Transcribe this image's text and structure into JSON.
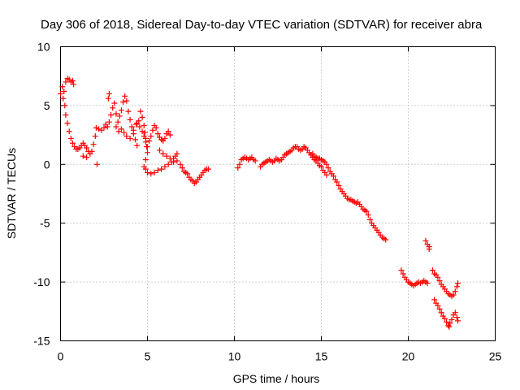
{
  "chart_data": {
    "type": "scatter",
    "title": "Day 306 of 2018, Sidereal Day-to-day VTEC variation (SDTVAR) for receiver abra",
    "xlabel": "GPS time / hours",
    "ylabel": "SDTVAR / TECUs",
    "xlim": [
      0,
      25
    ],
    "ylim": [
      -15,
      10
    ],
    "xticks": [
      0,
      5,
      10,
      15,
      20,
      25
    ],
    "yticks": [
      10,
      5,
      0,
      -5,
      -10,
      -15
    ],
    "xtick_labels": [
      "0",
      "5",
      "10",
      "15",
      "20",
      "25"
    ],
    "ytick_labels": [
      "10",
      "5",
      "0",
      "-5",
      "-10",
      "-15"
    ],
    "grid": true,
    "marker": "plus",
    "color": "#ff0000",
    "series": [
      {
        "name": "SDTVAR",
        "points": [
          [
            0.0,
            6.0
          ],
          [
            0.1,
            6.6
          ],
          [
            0.2,
            6.2
          ],
          [
            0.3,
            7.0
          ],
          [
            0.4,
            7.3
          ],
          [
            0.5,
            7.2
          ],
          [
            0.6,
            7.0
          ],
          [
            0.7,
            7.1
          ],
          [
            0.75,
            6.8
          ],
          [
            0.15,
            5.6
          ],
          [
            0.25,
            5.0
          ],
          [
            0.3,
            4.2
          ],
          [
            0.4,
            3.5
          ],
          [
            0.5,
            2.8
          ],
          [
            0.6,
            2.2
          ],
          [
            0.7,
            1.8
          ],
          [
            0.8,
            1.5
          ],
          [
            0.9,
            1.3
          ],
          [
            1.0,
            1.3
          ],
          [
            1.1,
            1.4
          ],
          [
            1.2,
            1.6
          ],
          [
            1.3,
            1.8
          ],
          [
            1.4,
            1.6
          ],
          [
            1.5,
            1.4
          ],
          [
            1.6,
            1.1
          ],
          [
            1.7,
            0.9
          ],
          [
            1.8,
            1.1
          ],
          [
            1.9,
            1.7
          ],
          [
            2.0,
            2.4
          ],
          [
            2.05,
            3.1
          ],
          [
            1.3,
            0.7
          ],
          [
            1.5,
            0.6
          ],
          [
            2.1,
            0.0
          ],
          [
            2.2,
            3.0
          ],
          [
            2.35,
            2.9
          ],
          [
            2.5,
            3.1
          ],
          [
            2.6,
            3.4
          ],
          [
            2.7,
            3.2
          ],
          [
            2.8,
            3.6
          ],
          [
            2.9,
            4.2
          ],
          [
            2.75,
            5.6
          ],
          [
            2.8,
            6.0
          ],
          [
            3.0,
            4.8
          ],
          [
            3.1,
            5.2
          ],
          [
            3.2,
            4.3
          ],
          [
            3.3,
            3.6
          ],
          [
            3.4,
            4.1
          ],
          [
            3.5,
            4.6
          ],
          [
            3.6,
            5.3
          ],
          [
            3.7,
            5.8
          ],
          [
            3.8,
            5.4
          ],
          [
            3.9,
            4.5
          ],
          [
            4.0,
            3.8
          ],
          [
            4.1,
            3.2
          ],
          [
            4.2,
            2.6
          ],
          [
            4.3,
            2.1
          ],
          [
            4.4,
            1.6
          ],
          [
            3.2,
            3.2
          ],
          [
            3.35,
            2.8
          ],
          [
            3.5,
            3.0
          ],
          [
            3.65,
            2.7
          ],
          [
            3.8,
            2.4
          ],
          [
            4.0,
            2.2
          ],
          [
            4.2,
            2.9
          ],
          [
            4.35,
            3.4
          ],
          [
            4.5,
            3.7
          ],
          [
            4.6,
            4.5
          ],
          [
            4.7,
            4.0
          ],
          [
            4.8,
            3.3
          ],
          [
            4.85,
            2.7
          ],
          [
            4.9,
            2.2
          ],
          [
            4.95,
            1.5
          ],
          [
            5.0,
            1.0
          ],
          [
            4.9,
            0.4
          ],
          [
            4.8,
            -0.2
          ],
          [
            4.9,
            -0.4
          ],
          [
            5.0,
            -0.7
          ],
          [
            5.2,
            -0.8
          ],
          [
            5.4,
            -0.7
          ],
          [
            5.6,
            -0.5
          ],
          [
            5.8,
            -0.4
          ],
          [
            6.0,
            -0.2
          ],
          [
            6.2,
            0.0
          ],
          [
            6.4,
            0.2
          ],
          [
            6.5,
            0.5
          ],
          [
            6.6,
            0.7
          ],
          [
            6.7,
            0.9
          ],
          [
            4.4,
            3.5
          ],
          [
            4.55,
            3.2
          ],
          [
            4.7,
            2.8
          ],
          [
            4.8,
            2.4
          ],
          [
            4.9,
            1.9
          ],
          [
            5.0,
            1.5
          ],
          [
            5.1,
            2.0
          ],
          [
            5.2,
            2.4
          ],
          [
            5.3,
            2.9
          ],
          [
            5.4,
            3.3
          ],
          [
            5.5,
            3.1
          ],
          [
            5.6,
            2.6
          ],
          [
            5.7,
            2.3
          ],
          [
            5.8,
            2.1
          ],
          [
            5.9,
            2.0
          ],
          [
            6.0,
            2.2
          ],
          [
            6.1,
            2.6
          ],
          [
            6.2,
            2.8
          ],
          [
            6.3,
            2.5
          ],
          [
            5.7,
            1.2
          ],
          [
            5.9,
            0.9
          ],
          [
            6.1,
            0.7
          ],
          [
            6.3,
            0.5
          ],
          [
            6.5,
            0.2
          ],
          [
            6.7,
            0.3
          ],
          [
            6.9,
            0.0
          ],
          [
            7.0,
            -0.3
          ],
          [
            7.1,
            -0.6
          ],
          [
            7.2,
            -0.7
          ],
          [
            7.3,
            -0.8
          ],
          [
            7.4,
            -1.1
          ],
          [
            7.5,
            -1.3
          ],
          [
            7.6,
            -1.4
          ],
          [
            7.7,
            -1.6
          ],
          [
            7.8,
            -1.5
          ],
          [
            7.9,
            -1.3
          ],
          [
            8.0,
            -1.1
          ],
          [
            8.1,
            -0.9
          ],
          [
            8.2,
            -0.7
          ],
          [
            8.3,
            -0.5
          ],
          [
            8.4,
            -0.4
          ],
          [
            8.5,
            -0.4
          ],
          [
            10.2,
            -0.3
          ],
          [
            10.3,
            0.0
          ],
          [
            10.4,
            0.4
          ],
          [
            10.5,
            0.5
          ],
          [
            10.6,
            0.6
          ],
          [
            10.7,
            0.5
          ],
          [
            10.8,
            0.4
          ],
          [
            10.9,
            0.5
          ],
          [
            11.0,
            0.6
          ],
          [
            11.1,
            0.4
          ],
          [
            11.2,
            0.3
          ],
          [
            11.5,
            -0.2
          ],
          [
            11.6,
            0.0
          ],
          [
            11.7,
            0.1
          ],
          [
            11.8,
            0.2
          ],
          [
            11.9,
            0.3
          ],
          [
            12.0,
            0.4
          ],
          [
            12.1,
            0.3
          ],
          [
            12.2,
            0.2
          ],
          [
            12.3,
            0.3
          ],
          [
            12.4,
            0.5
          ],
          [
            12.5,
            0.4
          ],
          [
            12.6,
            0.3
          ],
          [
            12.7,
            0.4
          ],
          [
            12.8,
            0.6
          ],
          [
            12.9,
            0.8
          ],
          [
            13.0,
            0.9
          ],
          [
            13.1,
            1.0
          ],
          [
            13.2,
            1.1
          ],
          [
            13.3,
            1.2
          ],
          [
            13.4,
            1.4
          ],
          [
            13.5,
            1.5
          ],
          [
            13.6,
            1.5
          ],
          [
            13.7,
            1.3
          ],
          [
            13.8,
            1.2
          ],
          [
            13.9,
            1.3
          ],
          [
            14.0,
            1.5
          ],
          [
            14.1,
            1.4
          ],
          [
            14.2,
            1.2
          ],
          [
            14.3,
            1.0
          ],
          [
            14.4,
            0.8
          ],
          [
            14.5,
            0.6
          ],
          [
            14.6,
            0.4
          ],
          [
            14.7,
            0.3
          ],
          [
            14.8,
            0.1
          ],
          [
            14.9,
            -0.1
          ],
          [
            15.0,
            -0.2
          ],
          [
            15.1,
            -0.5
          ],
          [
            15.2,
            -0.7
          ],
          [
            15.3,
            -0.9
          ],
          [
            14.5,
            0.9
          ],
          [
            14.6,
            0.7
          ],
          [
            14.7,
            0.6
          ],
          [
            14.8,
            0.5
          ],
          [
            14.9,
            0.5
          ],
          [
            15.0,
            0.4
          ],
          [
            15.1,
            0.3
          ],
          [
            15.2,
            0.2
          ],
          [
            15.3,
            0.0
          ],
          [
            15.4,
            -0.3
          ],
          [
            15.5,
            -0.6
          ],
          [
            15.6,
            -0.8
          ],
          [
            15.7,
            -1.0
          ],
          [
            15.8,
            -1.3
          ],
          [
            15.9,
            -1.5
          ],
          [
            16.0,
            -1.8
          ],
          [
            16.1,
            -2.1
          ],
          [
            16.2,
            -2.3
          ],
          [
            16.3,
            -2.5
          ],
          [
            16.4,
            -2.7
          ],
          [
            16.5,
            -2.9
          ],
          [
            16.6,
            -3.0
          ],
          [
            16.7,
            -3.0
          ],
          [
            16.8,
            -3.1
          ],
          [
            16.9,
            -3.2
          ],
          [
            17.0,
            -3.3
          ],
          [
            17.1,
            -3.2
          ],
          [
            17.2,
            -3.4
          ],
          [
            17.3,
            -3.6
          ],
          [
            17.4,
            -3.8
          ],
          [
            17.5,
            -3.9
          ],
          [
            17.6,
            -4.0
          ],
          [
            17.7,
            -4.3
          ],
          [
            17.8,
            -4.7
          ],
          [
            17.9,
            -5.0
          ],
          [
            18.0,
            -5.2
          ],
          [
            18.1,
            -5.4
          ],
          [
            18.2,
            -5.6
          ],
          [
            18.3,
            -5.8
          ],
          [
            18.4,
            -6.0
          ],
          [
            18.5,
            -6.2
          ],
          [
            18.6,
            -6.3
          ],
          [
            18.7,
            -6.4
          ],
          [
            19.6,
            -9.0
          ],
          [
            19.7,
            -9.3
          ],
          [
            19.8,
            -9.6
          ],
          [
            19.9,
            -9.8
          ],
          [
            20.0,
            -10.0
          ],
          [
            20.1,
            -10.1
          ],
          [
            20.2,
            -10.2
          ],
          [
            20.3,
            -10.3
          ],
          [
            20.4,
            -10.2
          ],
          [
            20.5,
            -10.1
          ],
          [
            20.6,
            -10.0
          ],
          [
            20.7,
            -10.1
          ],
          [
            20.8,
            -10.0
          ],
          [
            20.9,
            -9.9
          ],
          [
            21.0,
            -10.0
          ],
          [
            21.1,
            -10.1
          ],
          [
            21.0,
            -6.5
          ],
          [
            21.1,
            -6.8
          ],
          [
            21.2,
            -7.0
          ],
          [
            21.2,
            -7.2
          ],
          [
            21.4,
            -9.0
          ],
          [
            21.5,
            -9.3
          ],
          [
            21.6,
            -9.4
          ],
          [
            21.7,
            -9.6
          ],
          [
            21.8,
            -9.9
          ],
          [
            21.9,
            -10.2
          ],
          [
            22.0,
            -10.4
          ],
          [
            22.1,
            -10.6
          ],
          [
            22.2,
            -10.8
          ],
          [
            22.3,
            -11.0
          ],
          [
            22.4,
            -11.1
          ],
          [
            22.5,
            -11.2
          ],
          [
            22.6,
            -11.1
          ],
          [
            22.7,
            -10.8
          ],
          [
            22.8,
            -10.4
          ],
          [
            22.85,
            -10.1
          ],
          [
            21.5,
            -11.5
          ],
          [
            21.6,
            -11.8
          ],
          [
            21.7,
            -12.0
          ],
          [
            21.8,
            -12.3
          ],
          [
            21.9,
            -12.6
          ],
          [
            22.0,
            -12.9
          ],
          [
            22.1,
            -13.1
          ],
          [
            22.2,
            -13.4
          ],
          [
            22.3,
            -13.7
          ],
          [
            22.35,
            -13.8
          ],
          [
            22.4,
            -13.5
          ],
          [
            22.5,
            -13.2
          ],
          [
            22.6,
            -12.8
          ],
          [
            22.7,
            -12.6
          ],
          [
            22.8,
            -13.0
          ],
          [
            22.85,
            -13.3
          ]
        ]
      }
    ]
  }
}
